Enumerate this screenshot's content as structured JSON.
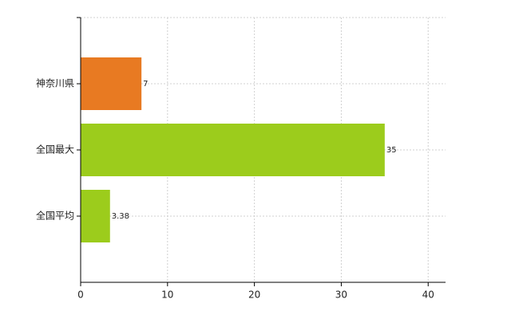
{
  "chart_data": {
    "type": "hbar",
    "categories": [
      "神奈川県",
      "全国最大",
      "全国平均"
    ],
    "values": [
      7,
      35,
      3.38
    ],
    "colors": [
      "#e87a22",
      "#9ccc1c",
      "#9ccc1c"
    ],
    "xlim": [
      0,
      42
    ],
    "xticks": [
      0,
      10,
      20,
      30,
      40
    ],
    "grid": true
  }
}
